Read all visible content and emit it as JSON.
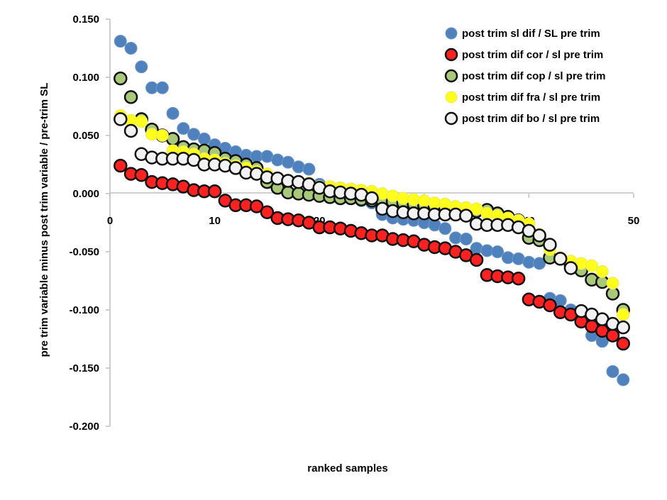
{
  "chart_data": {
    "type": "scatter",
    "title": "",
    "xlabel": "ranked samples",
    "ylabel": "pre trim variable minus post trim variable / pre-trim SL",
    "xlim": [
      0,
      50
    ],
    "ylim": [
      -0.2,
      0.15
    ],
    "xticks": [
      "0",
      "10",
      "20",
      "30",
      "40",
      "50"
    ],
    "yticks": [
      "0.150",
      "0.100",
      "0.050",
      "0.000",
      "-0.050",
      "-0.100",
      "-0.150",
      "-0.200"
    ],
    "grid": false,
    "legend_position": "top-right",
    "series": [
      {
        "name": "post trim sl dif / SL pre trim",
        "color": "#4f81bd",
        "fill": "#4f81bd",
        "stroke": "#6d96c8",
        "values": [
          0.131,
          0.125,
          0.109,
          0.091,
          0.091,
          0.069,
          0.056,
          0.051,
          0.047,
          0.042,
          0.039,
          0.036,
          0.033,
          0.032,
          0.032,
          0.029,
          0.027,
          0.023,
          0.021,
          0.008,
          0.003,
          -0.001,
          -0.004,
          -0.006,
          -0.008,
          -0.018,
          -0.021,
          -0.022,
          -0.023,
          -0.025,
          -0.027,
          -0.03,
          -0.038,
          -0.039,
          -0.047,
          -0.049,
          -0.05,
          -0.055,
          -0.056,
          -0.059,
          -0.06,
          -0.09,
          -0.092,
          -0.1,
          -0.103,
          -0.122,
          -0.127,
          -0.153,
          -0.16
        ]
      },
      {
        "name": "post trim dif cor / sl pre trim",
        "color": "#ff0000",
        "fill": "#ff2020",
        "stroke": "#111111",
        "values": [
          0.024,
          0.017,
          0.016,
          0.01,
          0.009,
          0.008,
          0.006,
          0.003,
          0.002,
          0.002,
          -0.006,
          -0.01,
          -0.01,
          -0.011,
          -0.016,
          -0.021,
          -0.022,
          -0.023,
          -0.025,
          -0.029,
          -0.029,
          -0.03,
          -0.032,
          -0.034,
          -0.036,
          -0.036,
          -0.039,
          -0.04,
          -0.041,
          -0.044,
          -0.046,
          -0.047,
          -0.05,
          -0.053,
          -0.057,
          -0.07,
          -0.071,
          -0.072,
          -0.073,
          -0.091,
          -0.093,
          -0.096,
          -0.102,
          -0.104,
          -0.11,
          -0.114,
          -0.118,
          -0.122,
          -0.129
        ]
      },
      {
        "name": "post trim dif cop / sl pre trim",
        "color": "#9bbb59",
        "fill": "#a9c97a",
        "stroke": "#111111",
        "values": [
          0.099,
          0.083,
          0.064,
          0.055,
          0.05,
          0.047,
          0.04,
          0.038,
          0.037,
          0.035,
          0.03,
          0.028,
          0.025,
          0.022,
          0.01,
          0.005,
          0.001,
          0.0,
          -0.001,
          -0.002,
          -0.003,
          -0.004,
          -0.004,
          -0.005,
          -0.006,
          -0.006,
          -0.007,
          -0.008,
          -0.009,
          -0.01,
          -0.011,
          -0.012,
          -0.013,
          -0.014,
          -0.015,
          -0.014,
          -0.017,
          -0.02,
          -0.023,
          -0.038,
          -0.04,
          -0.055,
          -0.056,
          -0.062,
          -0.066,
          -0.074,
          -0.076,
          -0.086,
          -0.1
        ]
      },
      {
        "name": "post trim dif fra / sl pre trim",
        "color": "#ffff00",
        "fill": "#ffff1a",
        "stroke": "#e8e86a",
        "values": [
          0.067,
          0.063,
          0.062,
          0.051,
          0.05,
          0.037,
          0.036,
          0.034,
          0.03,
          0.029,
          0.026,
          0.024,
          0.022,
          0.019,
          0.017,
          0.013,
          0.011,
          0.01,
          0.009,
          0.006,
          0.006,
          0.005,
          0.004,
          0.003,
          0.002,
          0.0,
          -0.002,
          -0.004,
          -0.005,
          -0.006,
          -0.008,
          -0.009,
          -0.011,
          -0.012,
          -0.013,
          -0.017,
          -0.019,
          -0.021,
          -0.023,
          -0.026,
          -0.035,
          -0.048,
          -0.055,
          -0.058,
          -0.06,
          -0.062,
          -0.067,
          -0.077,
          -0.104
        ]
      },
      {
        "name": "post trim dif bo / sl pre trim",
        "color": "#ffffff",
        "fill": "#f2f2f2",
        "stroke": "#111111",
        "values": [
          0.064,
          0.054,
          0.034,
          0.031,
          0.03,
          0.03,
          0.03,
          0.029,
          0.025,
          0.025,
          0.024,
          0.022,
          0.018,
          0.017,
          0.014,
          0.013,
          0.011,
          0.01,
          0.008,
          0.005,
          0.002,
          0.001,
          0.0,
          -0.001,
          -0.004,
          -0.013,
          -0.015,
          -0.016,
          -0.017,
          -0.017,
          -0.018,
          -0.018,
          -0.018,
          -0.019,
          -0.026,
          -0.027,
          -0.027,
          -0.027,
          -0.029,
          -0.032,
          -0.036,
          -0.044,
          -0.056,
          -0.064,
          -0.101,
          -0.104,
          -0.108,
          -0.112,
          -0.115
        ]
      }
    ]
  }
}
